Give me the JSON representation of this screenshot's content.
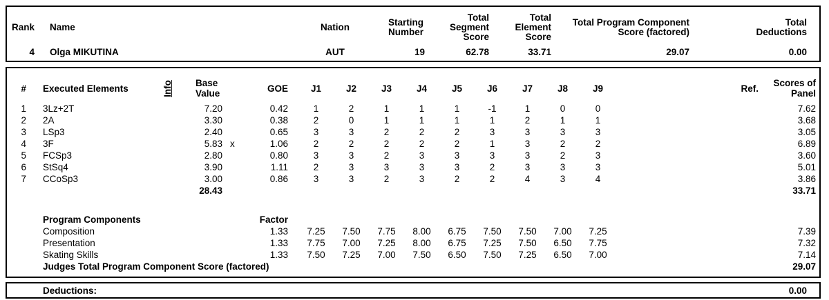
{
  "summary": {
    "labels": {
      "rank": "Rank",
      "name": "Name",
      "nation": "Nation",
      "starting_number": "Starting\nNumber",
      "segment": "Total\nSegment\nScore",
      "element": "Total\nElement\nScore",
      "components": "Total Program Component\nScore (factored)",
      "deductions": "Total\nDeductions"
    },
    "values": {
      "rank": "4",
      "name": "Olga MIKUTINA",
      "nation": "AUT",
      "starting_number": "19",
      "segment": "62.78",
      "element": "33.71",
      "components": "29.07",
      "deductions": "0.00"
    }
  },
  "elements_table": {
    "headers": {
      "num": "#",
      "name": "Executed Elements",
      "info": "Info",
      "base": "Base\nValue",
      "goe": "GOE",
      "judges": [
        "J1",
        "J2",
        "J3",
        "J4",
        "J5",
        "J6",
        "J7",
        "J8",
        "J9"
      ],
      "ref": "Ref.",
      "panel": "Scores of\nPanel"
    },
    "rows": [
      {
        "num": "1",
        "name": "3Lz+2T",
        "info": "",
        "base": "7.20",
        "x": "",
        "goe": "0.42",
        "judges": [
          "1",
          "2",
          "1",
          "1",
          "1",
          "-1",
          "1",
          "0",
          "0"
        ],
        "panel": "7.62"
      },
      {
        "num": "2",
        "name": "2A",
        "info": "",
        "base": "3.30",
        "x": "",
        "goe": "0.38",
        "judges": [
          "2",
          "0",
          "1",
          "1",
          "1",
          "1",
          "2",
          "1",
          "1"
        ],
        "panel": "3.68"
      },
      {
        "num": "3",
        "name": "LSp3",
        "info": "",
        "base": "2.40",
        "x": "",
        "goe": "0.65",
        "judges": [
          "3",
          "3",
          "2",
          "2",
          "2",
          "3",
          "3",
          "3",
          "3"
        ],
        "panel": "3.05"
      },
      {
        "num": "4",
        "name": "3F",
        "info": "",
        "base": "5.83",
        "x": "x",
        "goe": "1.06",
        "judges": [
          "2",
          "2",
          "2",
          "2",
          "2",
          "1",
          "3",
          "2",
          "2"
        ],
        "panel": "6.89"
      },
      {
        "num": "5",
        "name": "FCSp3",
        "info": "",
        "base": "2.80",
        "x": "",
        "goe": "0.80",
        "judges": [
          "3",
          "3",
          "2",
          "3",
          "3",
          "3",
          "3",
          "2",
          "3"
        ],
        "panel": "3.60"
      },
      {
        "num": "6",
        "name": "StSq4",
        "info": "",
        "base": "3.90",
        "x": "",
        "goe": "1.11",
        "judges": [
          "2",
          "3",
          "3",
          "3",
          "3",
          "2",
          "3",
          "3",
          "3"
        ],
        "panel": "5.01"
      },
      {
        "num": "7",
        "name": "CCoSp3",
        "info": "",
        "base": "3.00",
        "x": "",
        "goe": "0.86",
        "judges": [
          "3",
          "3",
          "2",
          "3",
          "2",
          "2",
          "4",
          "3",
          "4"
        ],
        "panel": "3.86"
      }
    ],
    "totals": {
      "base": "28.43",
      "panel": "33.71"
    }
  },
  "components_table": {
    "title": "Program Components",
    "factor_label": "Factor",
    "rows": [
      {
        "name": "Composition",
        "factor": "1.33",
        "judges": [
          "7.25",
          "7.50",
          "7.75",
          "8.00",
          "6.75",
          "7.50",
          "7.50",
          "7.00",
          "7.25"
        ],
        "panel": "7.39"
      },
      {
        "name": "Presentation",
        "factor": "1.33",
        "judges": [
          "7.75",
          "7.00",
          "7.25",
          "8.00",
          "6.75",
          "7.25",
          "7.50",
          "6.50",
          "7.75"
        ],
        "panel": "7.32"
      },
      {
        "name": "Skating Skills",
        "factor": "1.33",
        "judges": [
          "7.50",
          "7.25",
          "7.00",
          "7.50",
          "6.50",
          "7.50",
          "7.25",
          "6.50",
          "7.00"
        ],
        "panel": "7.14"
      }
    ],
    "total_label": "Judges Total Program Component Score (factored)",
    "total_value": "29.07"
  },
  "deductions": {
    "label": "Deductions:",
    "value": "0.00"
  }
}
